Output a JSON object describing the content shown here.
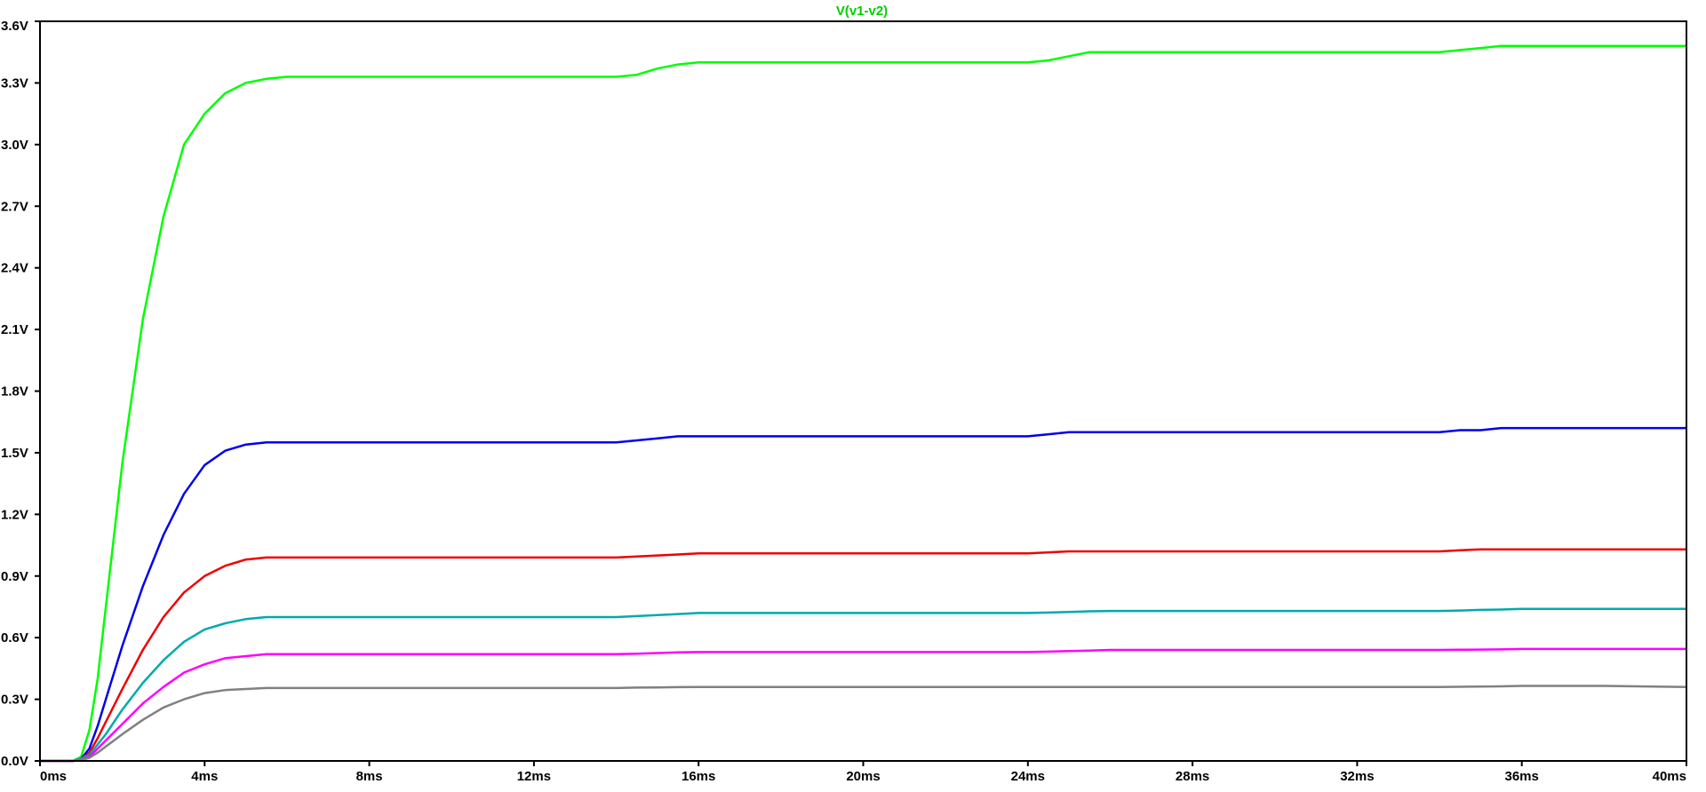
{
  "chart_data": {
    "type": "line",
    "title": "V(v1-v2)",
    "title_color": "#00d000",
    "xlim": [
      0,
      40
    ],
    "ylim": [
      0,
      3.6
    ],
    "x_unit": "ms",
    "x_ticks": [
      0,
      4,
      8,
      12,
      16,
      20,
      24,
      28,
      32,
      36,
      40
    ],
    "x_tick_labels": [
      "0ms",
      "4ms",
      "8ms",
      "12ms",
      "16ms",
      "20ms",
      "24ms",
      "28ms",
      "32ms",
      "36ms",
      "40ms"
    ],
    "y_ticks": [
      0.0,
      0.3,
      0.6,
      0.9,
      1.2,
      1.5,
      1.8,
      2.1,
      2.4,
      2.7,
      3.0,
      3.3,
      3.6
    ],
    "y_tick_labels": [
      "0.0V",
      "0.3V",
      "0.6V",
      "0.9V",
      "1.2V",
      "1.5V",
      "1.8V",
      "2.1V",
      "2.4V",
      "2.7V",
      "3.0V",
      "3.3V",
      "3.6V"
    ],
    "grid": false,
    "series": [
      {
        "color": "#00ff00",
        "x": [
          0,
          0.8,
          1.0,
          1.2,
          1.4,
          1.6,
          1.8,
          2.0,
          2.5,
          3.0,
          3.5,
          4.0,
          4.5,
          5.0,
          5.5,
          6.0,
          8.0,
          10.0,
          12.0,
          14.0,
          14.5,
          15.0,
          15.5,
          16.0,
          20.0,
          24.0,
          24.5,
          25.0,
          25.5,
          26.0,
          30.0,
          34.0,
          34.5,
          35.0,
          35.5,
          36.0,
          38.0,
          40.0
        ],
        "y": [
          0,
          0,
          0.02,
          0.15,
          0.4,
          0.75,
          1.1,
          1.45,
          2.15,
          2.65,
          3.0,
          3.15,
          3.25,
          3.3,
          3.32,
          3.33,
          3.33,
          3.33,
          3.33,
          3.33,
          3.34,
          3.37,
          3.39,
          3.4,
          3.4,
          3.4,
          3.41,
          3.43,
          3.45,
          3.45,
          3.45,
          3.45,
          3.46,
          3.47,
          3.48,
          3.48,
          3.48,
          3.48
        ]
      },
      {
        "color": "#0000ee",
        "x": [
          0,
          0.8,
          1.0,
          1.2,
          1.4,
          1.6,
          1.8,
          2.0,
          2.5,
          3.0,
          3.5,
          4.0,
          4.5,
          5.0,
          5.5,
          6.0,
          8.0,
          10.0,
          12.0,
          14.0,
          14.5,
          15.0,
          15.5,
          16.0,
          20.0,
          24.0,
          24.5,
          25.0,
          25.5,
          26.0,
          30.0,
          34.0,
          34.5,
          35.0,
          35.5,
          36.0,
          38.0,
          40.0
        ],
        "y": [
          0,
          0,
          0.01,
          0.06,
          0.17,
          0.3,
          0.43,
          0.56,
          0.85,
          1.1,
          1.3,
          1.44,
          1.51,
          1.54,
          1.55,
          1.55,
          1.55,
          1.55,
          1.55,
          1.55,
          1.56,
          1.57,
          1.58,
          1.58,
          1.58,
          1.58,
          1.59,
          1.6,
          1.6,
          1.6,
          1.6,
          1.6,
          1.61,
          1.61,
          1.62,
          1.62,
          1.62,
          1.62
        ]
      },
      {
        "color": "#ee0000",
        "x": [
          0,
          0.8,
          1.0,
          1.2,
          1.4,
          1.6,
          1.8,
          2.0,
          2.5,
          3.0,
          3.5,
          4.0,
          4.5,
          5.0,
          5.5,
          6.0,
          8.0,
          10.0,
          12.0,
          14.0,
          14.5,
          15.0,
          15.5,
          16.0,
          20.0,
          24.0,
          24.5,
          25.0,
          25.5,
          26.0,
          30.0,
          34.0,
          34.5,
          35.0,
          35.5,
          36.0,
          38.0,
          40.0
        ],
        "y": [
          0,
          0,
          0.01,
          0.04,
          0.11,
          0.19,
          0.27,
          0.35,
          0.54,
          0.7,
          0.82,
          0.9,
          0.95,
          0.98,
          0.99,
          0.99,
          0.99,
          0.99,
          0.99,
          0.99,
          0.995,
          1.0,
          1.005,
          1.01,
          1.01,
          1.01,
          1.015,
          1.02,
          1.02,
          1.02,
          1.02,
          1.02,
          1.025,
          1.03,
          1.03,
          1.03,
          1.03,
          1.03
        ]
      },
      {
        "color": "#00aaaa",
        "x": [
          0,
          0.8,
          1.0,
          1.2,
          1.4,
          1.6,
          1.8,
          2.0,
          2.5,
          3.0,
          3.5,
          4.0,
          4.5,
          5.0,
          5.5,
          6.0,
          8.0,
          10.0,
          12.0,
          14.0,
          14.5,
          15.0,
          15.5,
          16.0,
          20.0,
          24.0,
          24.5,
          25.0,
          25.5,
          26.0,
          30.0,
          34.0,
          34.5,
          35.0,
          35.5,
          36.0,
          38.0,
          40.0
        ],
        "y": [
          0,
          0,
          0.01,
          0.03,
          0.08,
          0.13,
          0.19,
          0.25,
          0.38,
          0.49,
          0.58,
          0.64,
          0.67,
          0.69,
          0.7,
          0.7,
          0.7,
          0.7,
          0.7,
          0.7,
          0.705,
          0.71,
          0.715,
          0.72,
          0.72,
          0.72,
          0.722,
          0.725,
          0.728,
          0.73,
          0.73,
          0.73,
          0.732,
          0.735,
          0.737,
          0.74,
          0.74,
          0.74
        ]
      },
      {
        "color": "#ff00ff",
        "x": [
          0,
          0.8,
          1.0,
          1.2,
          1.4,
          1.6,
          1.8,
          2.0,
          2.5,
          3.0,
          3.5,
          4.0,
          4.5,
          5.0,
          5.5,
          6.0,
          8.0,
          10.0,
          12.0,
          14.0,
          14.5,
          15.0,
          15.5,
          16.0,
          20.0,
          24.0,
          24.5,
          25.0,
          25.5,
          26.0,
          30.0,
          34.0,
          34.5,
          35.0,
          35.5,
          36.0,
          38.0,
          40.0
        ],
        "y": [
          0,
          0,
          0.005,
          0.02,
          0.06,
          0.1,
          0.14,
          0.18,
          0.28,
          0.36,
          0.43,
          0.47,
          0.5,
          0.51,
          0.52,
          0.52,
          0.52,
          0.52,
          0.52,
          0.52,
          0.522,
          0.525,
          0.528,
          0.53,
          0.53,
          0.53,
          0.532,
          0.535,
          0.537,
          0.54,
          0.54,
          0.54,
          0.541,
          0.542,
          0.543,
          0.545,
          0.545,
          0.545
        ]
      },
      {
        "color": "#808080",
        "x": [
          0,
          0.8,
          1.0,
          1.2,
          1.4,
          1.6,
          1.8,
          2.0,
          2.5,
          3.0,
          3.5,
          4.0,
          4.5,
          5.0,
          5.5,
          6.0,
          8.0,
          10.0,
          12.0,
          14.0,
          14.5,
          15.0,
          15.5,
          16.0,
          20.0,
          24.0,
          24.5,
          25.0,
          25.5,
          26.0,
          30.0,
          34.0,
          34.5,
          35.0,
          35.5,
          36.0,
          38.0,
          40.0
        ],
        "y": [
          0,
          0,
          0.004,
          0.015,
          0.04,
          0.07,
          0.1,
          0.13,
          0.2,
          0.26,
          0.3,
          0.33,
          0.345,
          0.35,
          0.355,
          0.355,
          0.355,
          0.355,
          0.355,
          0.355,
          0.357,
          0.358,
          0.359,
          0.36,
          0.36,
          0.36,
          0.36,
          0.36,
          0.36,
          0.36,
          0.36,
          0.36,
          0.361,
          0.362,
          0.363,
          0.365,
          0.365,
          0.36
        ]
      }
    ]
  }
}
